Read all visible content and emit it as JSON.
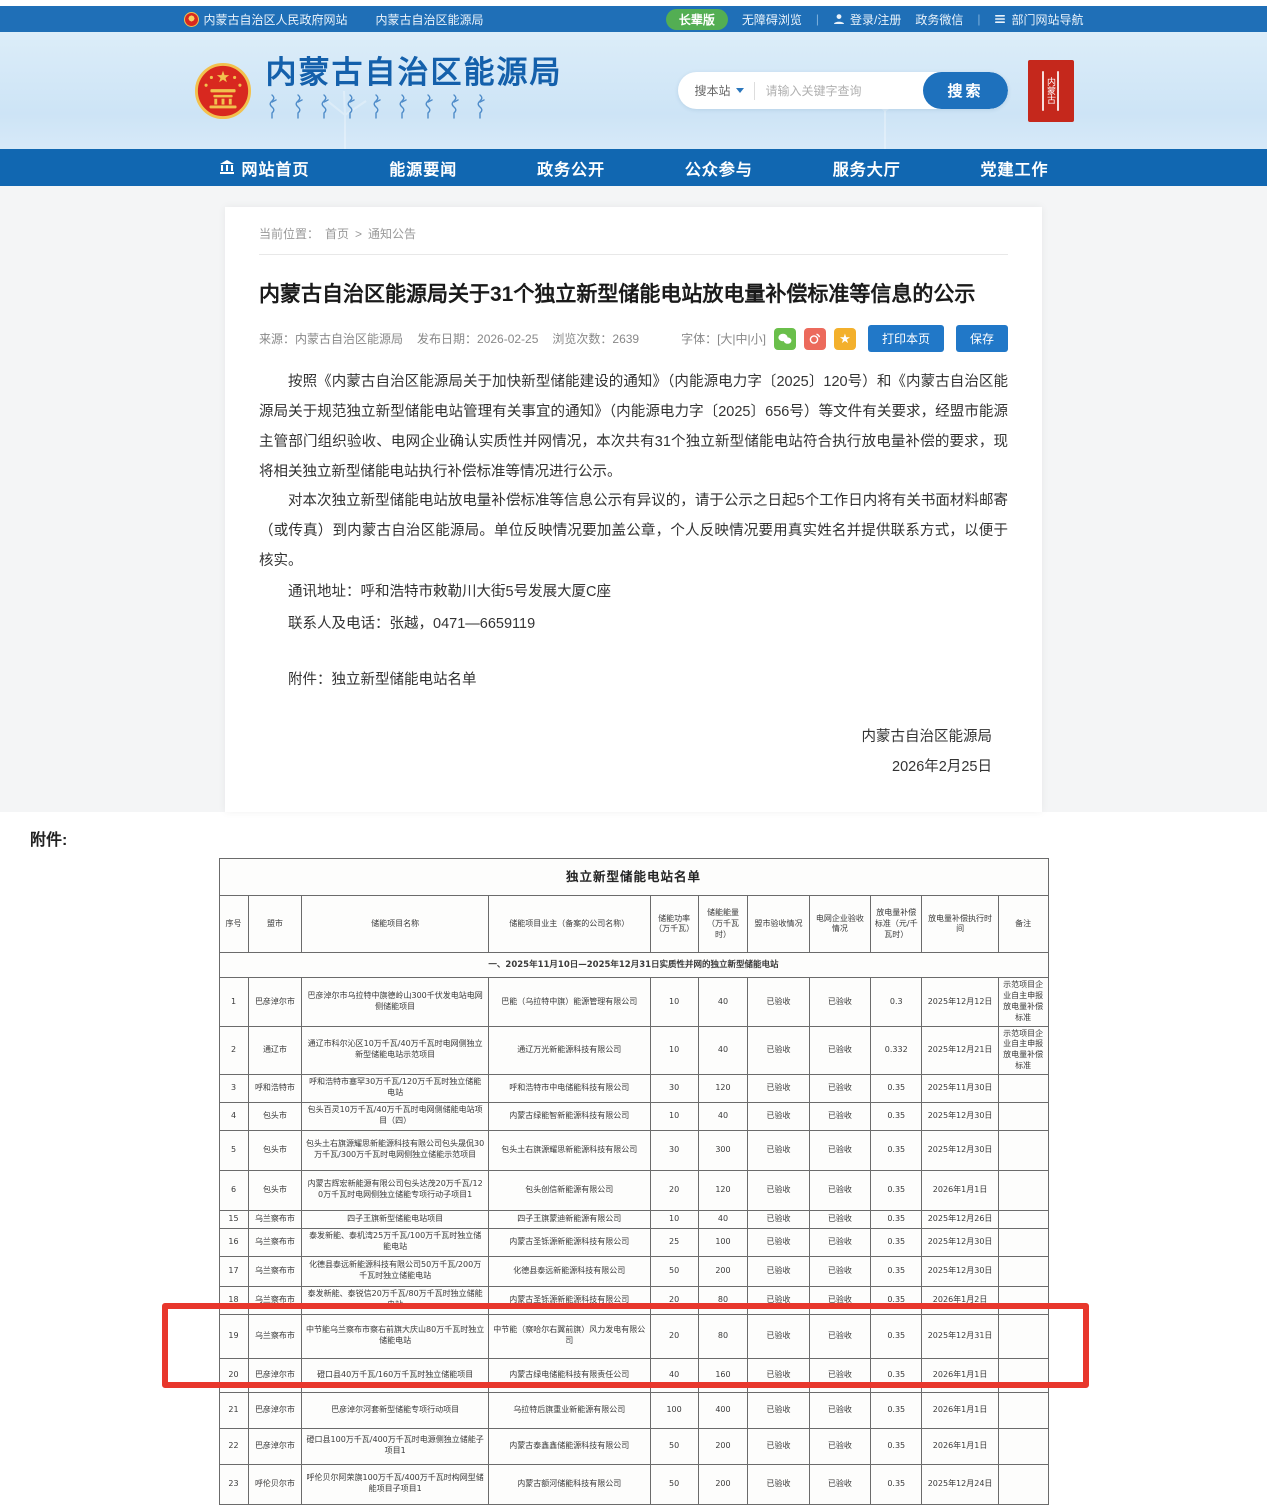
{
  "topbar": {
    "gov_site": "内蒙古自治区人民政府网站",
    "bureau_site": "内蒙古自治区能源局",
    "elder": "长辈版",
    "accessibility": "无障碍浏览",
    "login": "登录/注册",
    "wechat": "政务微信",
    "site_nav": "部门网站导航"
  },
  "header": {
    "site_title": "内蒙古自治区能源局",
    "search": {
      "scope": "搜本站",
      "placeholder": "请输入关键字查询",
      "button": "搜索"
    },
    "seal_text": "内蒙古"
  },
  "nav": {
    "items": [
      "网站首页",
      "能源要闻",
      "政务公开",
      "公众参与",
      "服务大厅",
      "党建工作"
    ]
  },
  "article": {
    "breadcrumb": {
      "label": "当前位置：",
      "home": "首页",
      "sep": ">",
      "current": "通知公告"
    },
    "title": "内蒙古自治区能源局关于31个独立新型储能电站放电量补偿标准等信息的公示",
    "meta": {
      "source": "来源：内蒙古自治区能源局",
      "date": "发布日期：2026-02-25",
      "views": "浏览次数：2639",
      "font_sizes": "字体：[大|中|小]",
      "print_button": "打印本页",
      "save_button": "保存",
      "star": "★"
    },
    "paragraph1": "按照《内蒙古自治区能源局关于加快新型储能建设的通知》（内能源电力字〔2025〕120号）和《内蒙古自治区能源局关于规范独立新型储能电站管理有关事宜的通知》（内能源电力字〔2025〕656号）等文件有关要求，经盟市能源主管部门组织验收、电网企业确认实质性并网情况，本次共有31个独立新型储能电站符合执行放电量补偿的要求，现将相关独立新型储能电站执行补偿标准等情况进行公示。",
    "paragraph2": "对本次独立新型储能电站放电量补偿标准等信息公示有异议的，请于公示之日起5个工作日内将有关书面材料邮寄（或传真）到内蒙古自治区能源局。单位反映情况要加盖公章，个人反映情况要用真实姓名并提供联系方式，以便于核实。",
    "contact_address": "通讯地址：呼和浩特市敕勒川大街5号发展大厦C座",
    "contact_person": "联系人及电话：张越，0471—6659119",
    "attachment_line": "附件：独立新型储能电站名单",
    "signature": "内蒙古自治区能源局",
    "sign_date": "2026年2月25日"
  },
  "attachment_label": "附件:",
  "table": {
    "title": "独立新型储能电站名单",
    "headers": [
      "序号",
      "盟市",
      "储能项目名称",
      "储能项目业主（备案的公司名称）",
      "储能功率（万千瓦）",
      "储能能量（万千瓦时）",
      "盟市验收情况",
      "电网企业验收情况",
      "放电量补偿标准（元/千瓦时）",
      "放电量补偿执行时间",
      "备注"
    ],
    "section": "一、2025年11月10日—2025年12月31日实质性并网的独立新型储能电站",
    "rows": [
      [
        "1",
        "巴彦淖尔市",
        "巴彦淖尔市乌拉特中旗德岭山300千伏发电站电网侧储能项目",
        "巴能（乌拉特中旗）能源管理有限公司",
        "10",
        "40",
        "已验收",
        "已验收",
        "0.3",
        "2025年12月12日",
        "示范项目企业自主申报放电量补偿标准"
      ],
      [
        "2",
        "通辽市",
        "通辽市科尔沁区10万千瓦/40万千瓦时电网侧独立新型储能电站示范项目",
        "通辽万光新能源科技有限公司",
        "10",
        "40",
        "已验收",
        "已验收",
        "0.332",
        "2025年12月21日",
        "示范项目企业自主申报放电量补偿标准"
      ],
      [
        "3",
        "呼和浩特市",
        "呼和浩特市塞罕30万千瓦/120万千瓦时独立储能电站",
        "呼和浩特市中电储能科技有限公司",
        "30",
        "120",
        "已验收",
        "已验收",
        "0.35",
        "2025年11月30日",
        ""
      ],
      [
        "4",
        "包头市",
        "包头百灵10万千瓦/40万千瓦时电网侧储能电站项目（四）",
        "内蒙古绿能智新能源科技有限公司",
        "10",
        "40",
        "已验收",
        "已验收",
        "0.35",
        "2025年12月30日",
        ""
      ],
      [
        "5",
        "包头市",
        "包头土右旗源耀思新能源科技有限公司包头晟侃30万千瓦/300万千瓦时电网侧独立储能示范项目",
        "包头土右旗源耀思新能源科技有限公司",
        "30",
        "300",
        "已验收",
        "已验收",
        "0.35",
        "2025年12月30日",
        ""
      ],
      [
        "6",
        "包头市",
        "内蒙古辉宏新能源有限公司包头达茂20万千瓦/120万千瓦时电网侧独立储能专项行动子项目1",
        "包头创信新能源有限公司",
        "20",
        "120",
        "已验收",
        "已验收",
        "0.35",
        "2026年1月1日",
        ""
      ],
      [
        "15",
        "乌兰察布市",
        "四子王旗新型储能电站项目",
        "四子王旗蒙迪新能源有限公司",
        "10",
        "40",
        "已验收",
        "已验收",
        "0.35",
        "2025年12月26日",
        ""
      ],
      [
        "16",
        "乌兰察布市",
        "泰发新能、泰机湾25万千瓦/100万千瓦时独立储能电站",
        "内蒙古圣铄源新能源科技有限公司",
        "25",
        "100",
        "已验收",
        "已验收",
        "0.35",
        "2025年12月30日",
        ""
      ],
      [
        "17",
        "乌兰察布市",
        "化德县泰远新能源科技有限公司50万千瓦/200万千瓦时独立储能电站",
        "化德县泰远新能源科技有限公司",
        "50",
        "200",
        "已验收",
        "已验收",
        "0.35",
        "2025年12月30日",
        ""
      ],
      [
        "18",
        "乌兰察布市",
        "泰发新能、泰锐信20万千瓦/80万千瓦时独立储能电站",
        "内蒙古圣铄源新能源科技有限公司",
        "20",
        "80",
        "已验收",
        "已验收",
        "0.35",
        "2026年1月2日",
        ""
      ],
      [
        "19",
        "乌兰察布市",
        "中节能乌兰察布市察右前旗大庆山80万千瓦时独立储能电站",
        "中节能（察哈尔右翼前旗）风力发电有限公司",
        "20",
        "80",
        "已验收",
        "已验收",
        "0.35",
        "2025年12月31日",
        ""
      ],
      [
        "20",
        "巴彦淖尔市",
        "磴口县40万千瓦/160万千瓦时独立储能项目",
        "内蒙古绿电储能科技有限责任公司",
        "40",
        "160",
        "已验收",
        "已验收",
        "0.35",
        "2026年1月1日",
        ""
      ],
      [
        "21",
        "巴彦淖尔市",
        "巴彦淖尔河套新型储能专项行动项目",
        "乌拉特后旗重业新能源有限公司",
        "100",
        "400",
        "已验收",
        "已验收",
        "0.35",
        "2026年1月1日",
        ""
      ],
      [
        "22",
        "巴彦淖尔市",
        "磴口县100万千瓦/400万千瓦时电源侧独立储能子项目1",
        "内蒙古泰鑫鑫储能源科技有限公司",
        "50",
        "200",
        "已验收",
        "已验收",
        "0.35",
        "2026年1月1日",
        ""
      ],
      [
        "23",
        "呼伦贝尔市",
        "呼伦贝尔阿荣旗100万千瓦/400万千瓦时构网型储能项目子项目1",
        "内蒙古额河储能科技有限公司",
        "50",
        "200",
        "已验收",
        "已验收",
        "0.35",
        "2025年12月24日",
        ""
      ]
    ]
  }
}
